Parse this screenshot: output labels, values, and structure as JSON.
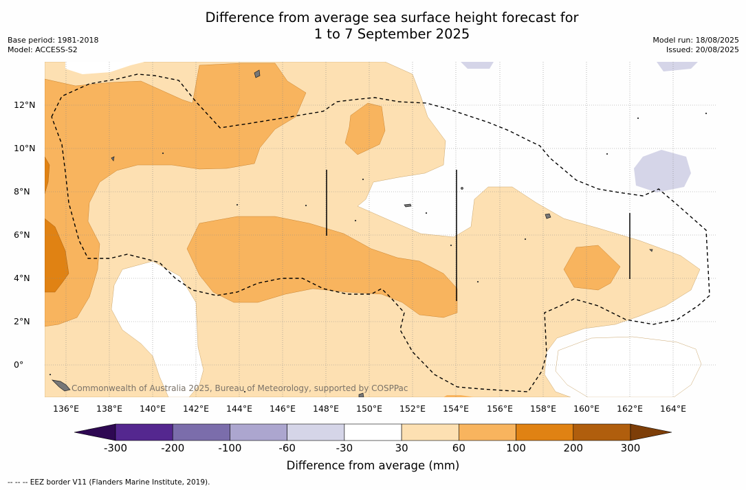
{
  "title": {
    "line1": "Difference from average sea surface height forecast for",
    "line2": "1 to 7 September 2025"
  },
  "meta_left": {
    "base_period": "Base period: 1981-2018",
    "model": "Model: ACCESS-S2"
  },
  "meta_right": {
    "model_run": "Model run: 18/08/2025",
    "issued": "Issued: 20/08/2025"
  },
  "credit": "Commonwealth of Australia 2025, Bureau of Meteorology, supported by COSPPac",
  "map": {
    "lat_labels": [
      "12°N",
      "10°N",
      "8°N",
      "6°N",
      "4°N",
      "2°N",
      "0°"
    ],
    "lon_labels": [
      "136°E",
      "138°E",
      "140°E",
      "142°E",
      "144°E",
      "146°E",
      "148°E",
      "150°E",
      "152°E",
      "154°E",
      "156°E",
      "158°E",
      "160°E",
      "162°E",
      "164°E"
    ],
    "eez_style": "dashed black line"
  },
  "colorbar": {
    "title": "Difference from average (mm)",
    "ticks": [
      "-300",
      "-200",
      "-100",
      "-60",
      "-30",
      "30",
      "60",
      "100",
      "200",
      "300"
    ],
    "colors": {
      "below_-300": "#2e0852",
      "-300_-200": "#54278f",
      "-200_-100": "#7b6dab",
      "-100_-60": "#aca6cf",
      "-60_-30": "#d5d5e8",
      "-30_30": "#ffffff",
      "30_60": "#fde0b2",
      "60_100": "#f8b45e",
      "100_200": "#e08213",
      "200_300": "#b05e0d",
      "above_300": "#7d3e08"
    }
  },
  "footnote": "--  --  -- EEZ border V11 (Flanders Marine Institute, 2019)."
}
